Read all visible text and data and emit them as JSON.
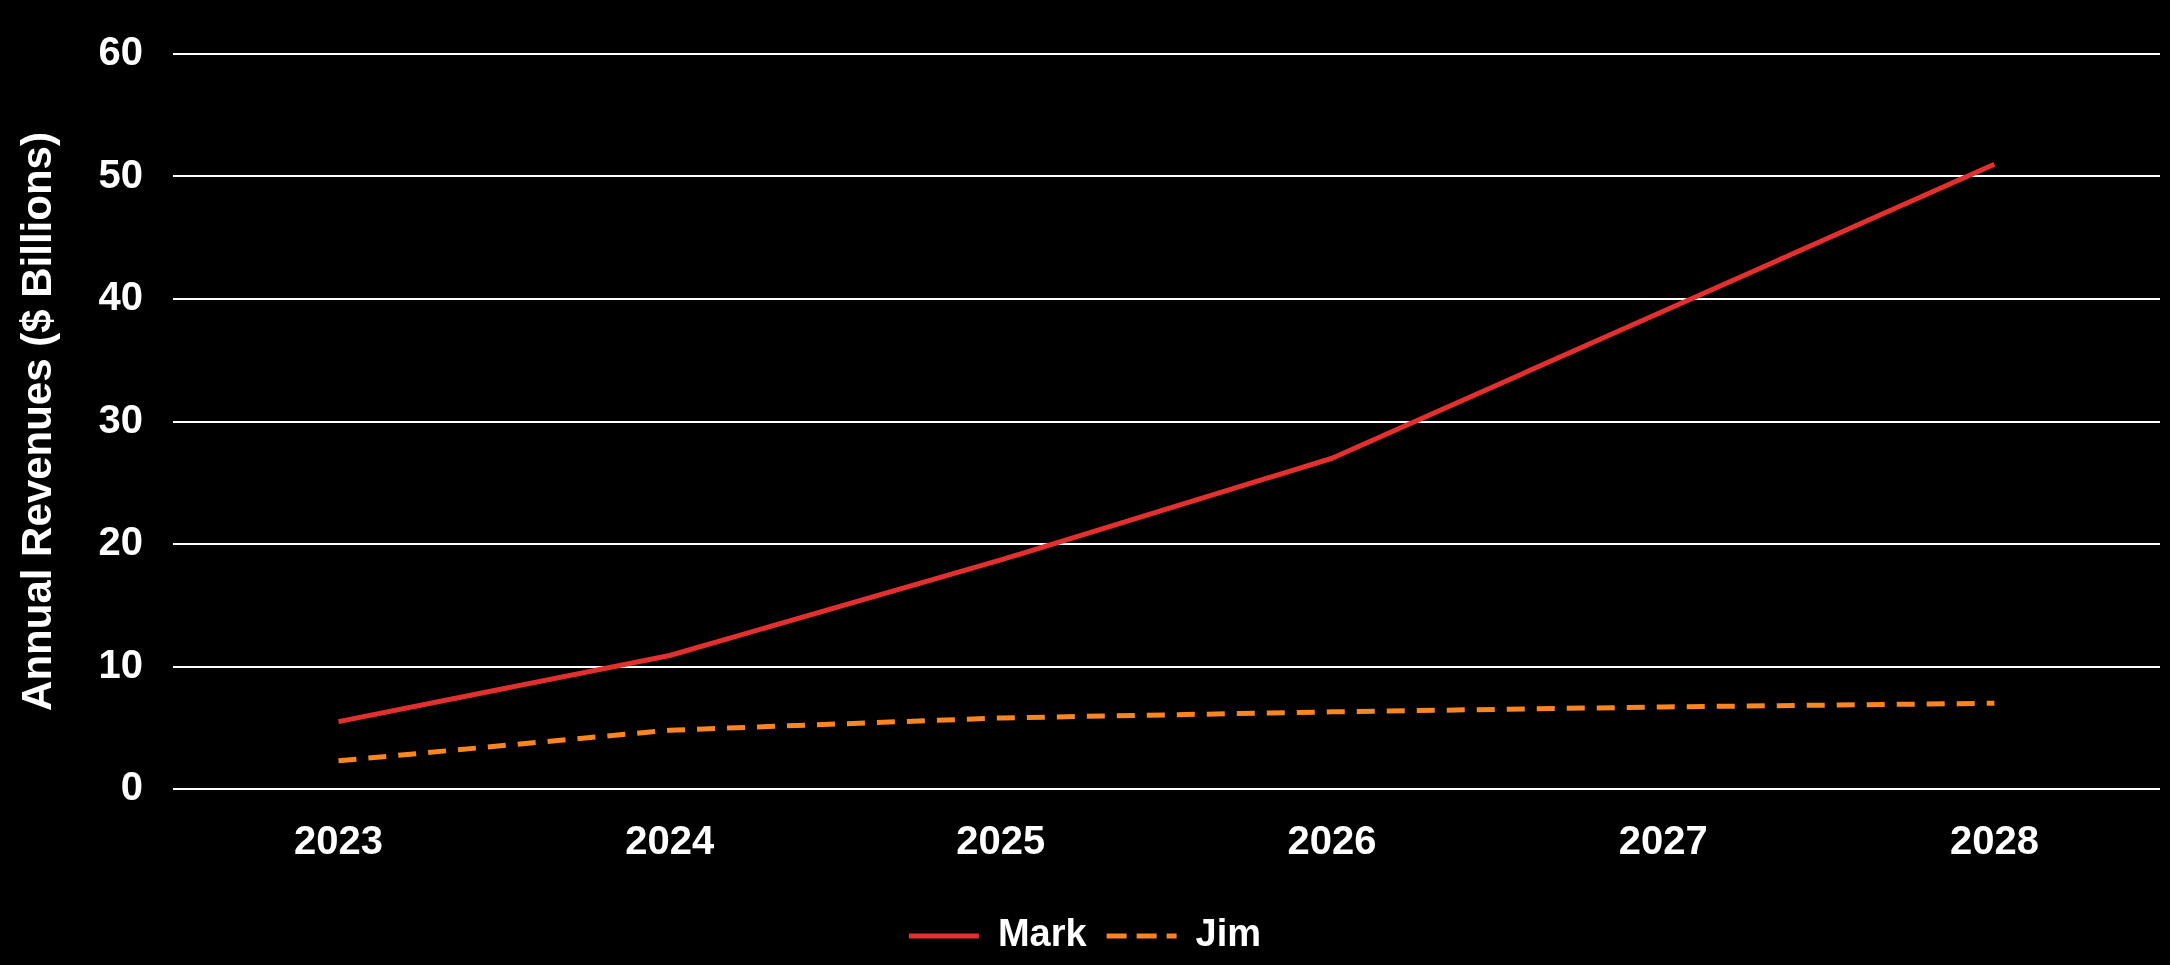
{
  "chart_data": {
    "type": "line",
    "ylabel": "Annual Revenues ($ Billions)",
    "categories": [
      "2023",
      "2024",
      "2025",
      "2026",
      "2027",
      "2028"
    ],
    "series": [
      {
        "name": "Mark",
        "color": "#e3302f",
        "values": [
          5.5,
          10.9,
          18.7,
          27,
          39,
          51
        ],
        "line_style": "solid"
      },
      {
        "name": "Jim",
        "color": "#fb8520",
        "values": [
          2.3,
          4.8,
          5.8,
          6.3,
          6.7,
          7
        ],
        "line_style": "dashed"
      }
    ],
    "ylim": [
      0,
      60
    ],
    "yticks": [
      0,
      10,
      20,
      30,
      40,
      50,
      60
    ],
    "grid": "y",
    "legend": "bottom",
    "marker": "none"
  }
}
